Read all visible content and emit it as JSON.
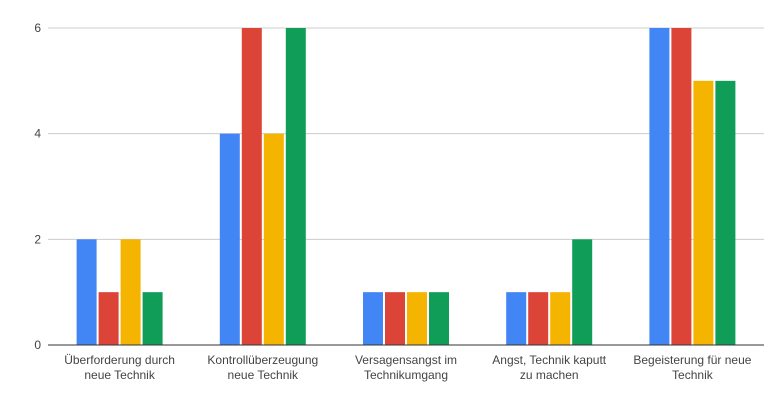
{
  "chart_data": {
    "type": "bar",
    "title": "",
    "xlabel": "",
    "ylabel": "",
    "ylim": [
      0,
      6
    ],
    "yticks": [
      0,
      2,
      4,
      6
    ],
    "grid": true,
    "legend": "none",
    "categories": [
      [
        "Überforderung durch",
        "neue Technik"
      ],
      [
        "Kontrollüberzeugung",
        "neue Technik"
      ],
      [
        "Versagensangst im",
        "Technikumgang"
      ],
      [
        "Angst, Technik kaputt",
        "zu machen"
      ],
      [
        "Begeisterung für neue",
        "Technik"
      ]
    ],
    "series": [
      {
        "color": "#4285f4",
        "values": [
          2,
          4,
          1,
          1,
          6
        ]
      },
      {
        "color": "#db4437",
        "values": [
          1,
          6,
          1,
          1,
          6
        ]
      },
      {
        "color": "#f4b400",
        "values": [
          2,
          4,
          1,
          1,
          5
        ]
      },
      {
        "color": "#0f9d58",
        "values": [
          1,
          6,
          1,
          2,
          5
        ]
      }
    ]
  }
}
